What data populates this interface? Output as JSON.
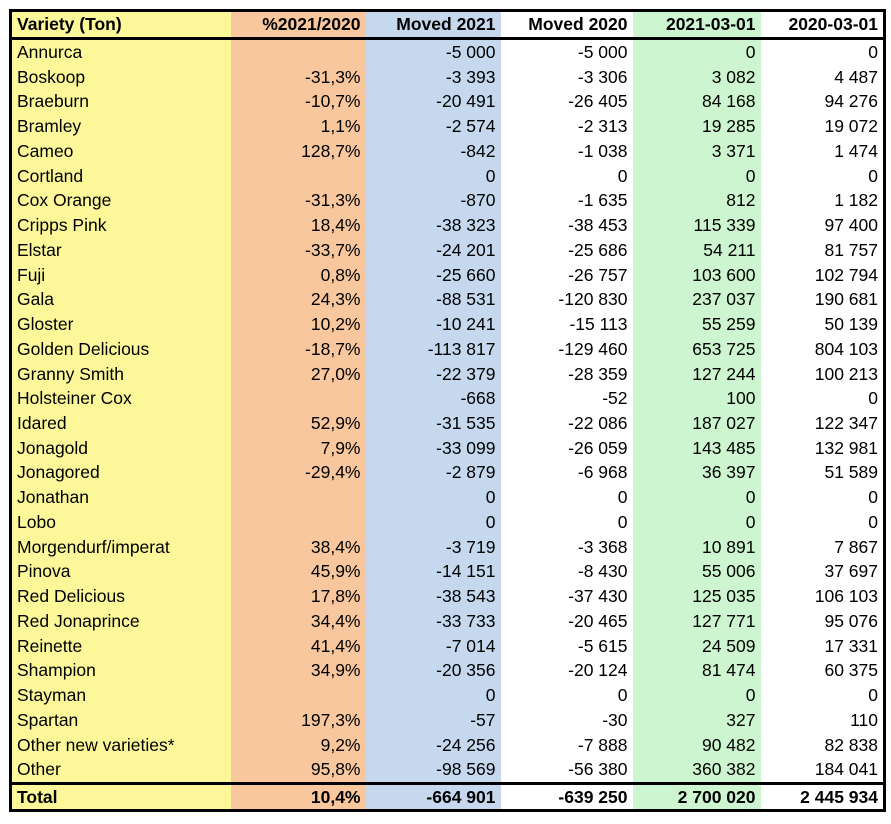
{
  "table": {
    "headers": [
      "Variety (Ton)",
      "%2021/2020",
      "Moved 2021",
      "Moved 2020",
      "2021-03-01",
      "2020-03-01"
    ],
    "column_colors": [
      "#fcf89a",
      "#f8c79e",
      "#c5d8ee",
      "#ffffff",
      "#cdf5cf",
      "#ffffff"
    ],
    "rows": [
      [
        "Annurca",
        "",
        "-5 000",
        "-5 000",
        "0",
        "0"
      ],
      [
        "Boskoop",
        "-31,3%",
        "-3 393",
        "-3 306",
        "3 082",
        "4 487"
      ],
      [
        "Braeburn",
        "-10,7%",
        "-20 491",
        "-26 405",
        "84 168",
        "94 276"
      ],
      [
        "Bramley",
        "1,1%",
        "-2 574",
        "-2 313",
        "19 285",
        "19 072"
      ],
      [
        "Cameo",
        "128,7%",
        "-842",
        "-1 038",
        "3 371",
        "1 474"
      ],
      [
        "Cortland",
        "",
        "0",
        "0",
        "0",
        "0"
      ],
      [
        "Cox Orange",
        "-31,3%",
        "-870",
        "-1 635",
        "812",
        "1 182"
      ],
      [
        "Cripps Pink",
        "18,4%",
        "-38 323",
        "-38 453",
        "115 339",
        "97 400"
      ],
      [
        "Elstar",
        "-33,7%",
        "-24 201",
        "-25 686",
        "54 211",
        "81 757"
      ],
      [
        "Fuji",
        "0,8%",
        "-25 660",
        "-26 757",
        "103 600",
        "102 794"
      ],
      [
        "Gala",
        "24,3%",
        "-88 531",
        "-120 830",
        "237 037",
        "190 681"
      ],
      [
        "Gloster",
        "10,2%",
        "-10 241",
        "-15 113",
        "55 259",
        "50 139"
      ],
      [
        "Golden Delicious",
        "-18,7%",
        "-113 817",
        "-129 460",
        "653 725",
        "804 103"
      ],
      [
        "Granny Smith",
        "27,0%",
        "-22 379",
        "-28 359",
        "127 244",
        "100 213"
      ],
      [
        "Holsteiner Cox",
        "",
        "-668",
        "-52",
        "100",
        "0"
      ],
      [
        "Idared",
        "52,9%",
        "-31 535",
        "-22 086",
        "187 027",
        "122 347"
      ],
      [
        "Jonagold",
        "7,9%",
        "-33 099",
        "-26 059",
        "143 485",
        "132 981"
      ],
      [
        "Jonagored",
        "-29,4%",
        "-2 879",
        "-6 968",
        "36 397",
        "51 589"
      ],
      [
        "Jonathan",
        "",
        "0",
        "0",
        "0",
        "0"
      ],
      [
        "Lobo",
        "",
        "0",
        "0",
        "0",
        "0"
      ],
      [
        "Morgendurf/imperat",
        "38,4%",
        "-3 719",
        "-3 368",
        "10 891",
        "7 867"
      ],
      [
        "Pinova",
        "45,9%",
        "-14 151",
        "-8 430",
        "55 006",
        "37 697"
      ],
      [
        "Red Delicious",
        "17,8%",
        "-38 543",
        "-37 430",
        "125 035",
        "106 103"
      ],
      [
        "Red Jonaprince",
        "34,4%",
        "-33 733",
        "-20 465",
        "127 771",
        "95 076"
      ],
      [
        "Reinette",
        "41,4%",
        "-7 014",
        "-5 615",
        "24 509",
        "17 331"
      ],
      [
        "Shampion",
        "34,9%",
        "-20 356",
        "-20 124",
        "81 474",
        "60 375"
      ],
      [
        "Stayman",
        "",
        "0",
        "0",
        "0",
        "0"
      ],
      [
        "Spartan",
        "197,3%",
        "-57",
        "-30",
        "327",
        "110"
      ],
      [
        "Other new varieties*",
        "9,2%",
        "-24 256",
        "-7 888",
        "90 482",
        "82 838"
      ],
      [
        "Other",
        "95,8%",
        "-98 569",
        "-56 380",
        "360 382",
        "184 041"
      ]
    ],
    "total": [
      "Total",
      "10,4%",
      "-664 901",
      "-639 250",
      "2 700 020",
      "2 445 934"
    ]
  }
}
